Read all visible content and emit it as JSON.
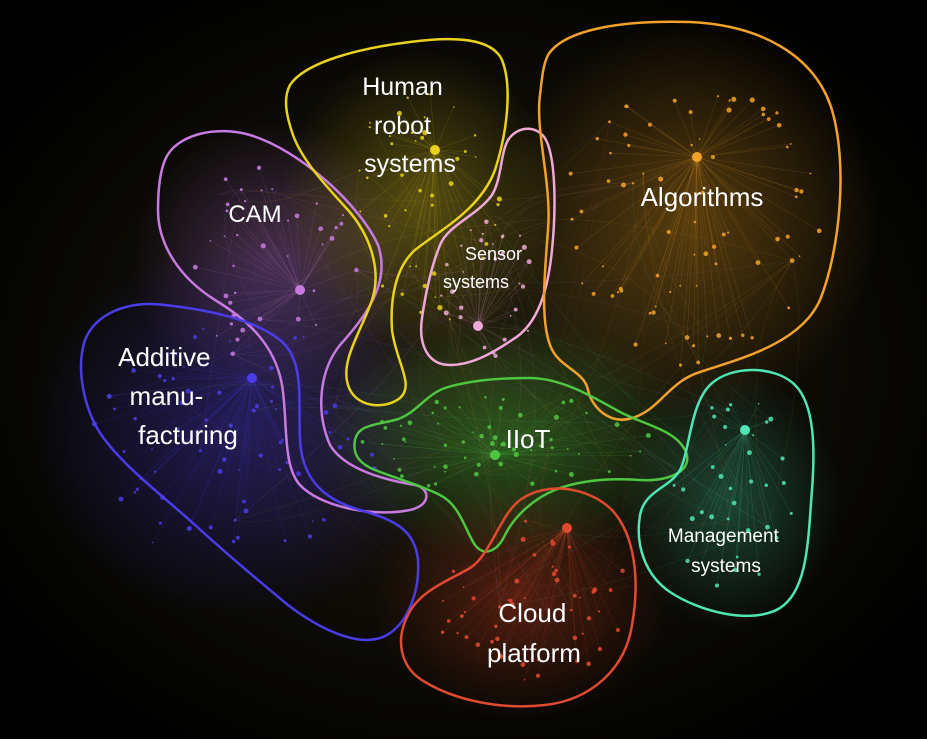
{
  "clusters": [
    {
      "key": "cam",
      "label_lines": [
        "CAM"
      ],
      "color": "#c77be0"
    },
    {
      "key": "human-robot",
      "label_lines": [
        "Human",
        "robot",
        "systems"
      ],
      "color": "#e8d21c"
    },
    {
      "key": "sensor",
      "label_lines": [
        "Sensor",
        "systems"
      ],
      "color": "#f0a8d8"
    },
    {
      "key": "algorithms",
      "label_lines": [
        "Algorithms"
      ],
      "color": "#f2a22a"
    },
    {
      "key": "additive",
      "label_lines": [
        "Additive",
        "manu-",
        "facturing"
      ],
      "color": "#4a3ce8"
    },
    {
      "key": "iiot",
      "label_lines": [
        "IIoT"
      ],
      "color": "#4fc642"
    },
    {
      "key": "management",
      "label_lines": [
        "Management",
        "systems"
      ],
      "color": "#4ee6b4"
    },
    {
      "key": "cloud",
      "label_lines": [
        "Cloud",
        "platform"
      ],
      "color": "#e04a30"
    }
  ]
}
